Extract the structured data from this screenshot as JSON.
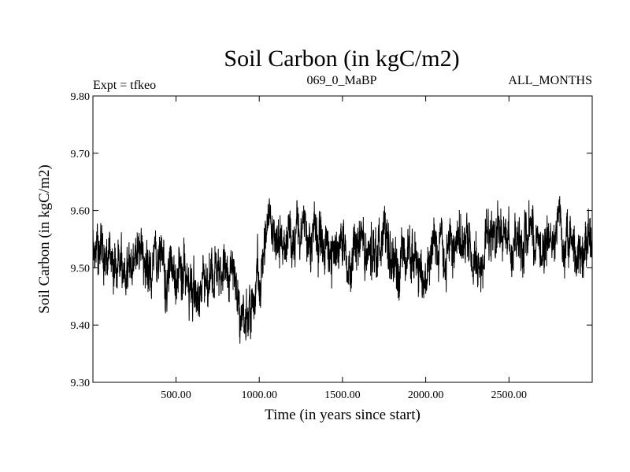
{
  "chart_data": {
    "type": "line",
    "title": "Soil Carbon (in kgC/m2)",
    "subtitle_left": "Expt = tfkeo",
    "subtitle_center": "069_0_MaBP",
    "subtitle_right": "ALL_MONTHS",
    "xlabel": "Time (in years since start)",
    "ylabel": "Soil Carbon (in kgC/m2)",
    "xlim": [
      1,
      3000
    ],
    "ylim": [
      9.3,
      9.8
    ],
    "x_ticks": [
      500,
      1000,
      1500,
      2000,
      2500
    ],
    "x_tick_labels": [
      "500.00",
      "1000.00",
      "1500.00",
      "2000.00",
      "2500.00"
    ],
    "y_ticks": [
      9.3,
      9.4,
      9.5,
      9.6,
      9.7,
      9.8
    ],
    "y_tick_labels": [
      "9.30",
      "9.40",
      "9.50",
      "9.60",
      "9.70",
      "9.80"
    ],
    "grid": false,
    "line_color": "#000000",
    "series": [
      {
        "x": [
          1,
          50,
          100,
          150,
          200,
          250,
          300,
          350,
          400,
          450,
          500,
          550,
          600,
          650,
          700,
          750,
          800,
          850,
          880,
          900,
          930,
          960,
          1000,
          1050,
          1100,
          1150,
          1200,
          1250,
          1300,
          1350,
          1400,
          1450,
          1500,
          1550,
          1600,
          1650,
          1700,
          1750,
          1800,
          1850,
          1900,
          1950,
          2000,
          2050,
          2100,
          2150,
          2200,
          2250,
          2300,
          2350,
          2400,
          2450,
          2500,
          2550,
          2600,
          2650,
          2700,
          2750,
          2800,
          2850,
          2900,
          2950,
          3000
        ],
        "y": [
          9.53,
          9.51,
          9.52,
          9.49,
          9.5,
          9.5,
          9.51,
          9.49,
          9.5,
          9.49,
          9.48,
          9.47,
          9.47,
          9.48,
          9.49,
          9.48,
          9.47,
          9.47,
          9.45,
          9.44,
          9.42,
          9.45,
          9.5,
          9.54,
          9.55,
          9.55,
          9.56,
          9.57,
          9.55,
          9.54,
          9.55,
          9.55,
          9.53,
          9.53,
          9.54,
          9.54,
          9.55,
          9.54,
          9.53,
          9.52,
          9.53,
          9.52,
          9.5,
          9.52,
          9.53,
          9.52,
          9.53,
          9.52,
          9.54,
          9.55,
          9.56,
          9.57,
          9.55,
          9.54,
          9.56,
          9.55,
          9.54,
          9.55,
          9.56,
          9.54,
          9.53,
          9.52,
          9.53
        ],
        "noise_amplitude": 0.09
      }
    ]
  }
}
